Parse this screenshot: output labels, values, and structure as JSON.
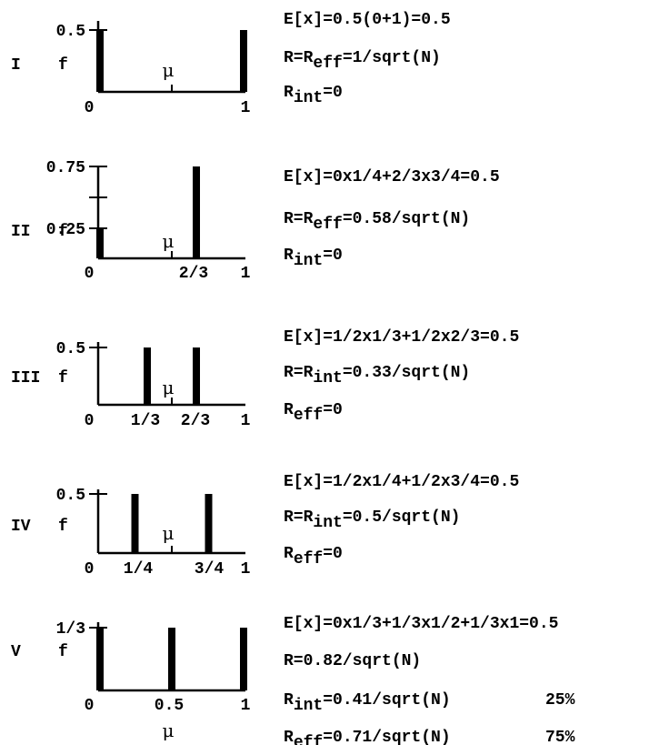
{
  "panels": [
    {
      "roman": "I",
      "f_label": "f",
      "mu_label": "μ",
      "x_ticks": [
        "0",
        "1"
      ],
      "y_ticks": [
        "0.5"
      ],
      "bars": [
        {
          "x": 0,
          "h": 0.5
        },
        {
          "x": 1,
          "h": 0.5
        }
      ],
      "mu": 0.5,
      "ymax": 0.5,
      "formulas": [
        [
          {
            "t": "E[x]=0.5(0+1)=0.5"
          }
        ],
        [
          {
            "t": "R=R"
          },
          {
            "t": "eff",
            "sub": true
          },
          {
            "t": "=1/sqrt(N)"
          }
        ],
        [
          {
            "t": "R"
          },
          {
            "t": "int",
            "sub": true
          },
          {
            "t": "=0"
          }
        ]
      ]
    },
    {
      "roman": "II",
      "f_label": "f",
      "mu_label": "μ",
      "x_ticks": [
        "0",
        "2/3",
        "1"
      ],
      "y_ticks": [
        "0.75",
        "0.25"
      ],
      "bars": [
        {
          "x": 0,
          "h": 0.25
        },
        {
          "x": 0.6667,
          "h": 0.75
        }
      ],
      "mu": 0.5,
      "ymax": 0.75,
      "formulas": [
        [
          {
            "t": "E[x]=0x1/4+2/3x3/4=0.5"
          }
        ],
        [
          {
            "t": "R=R"
          },
          {
            "t": "eff",
            "sub": true
          },
          {
            "t": "=0.58/sqrt(N)"
          }
        ],
        [
          {
            "t": "R"
          },
          {
            "t": "int",
            "sub": true
          },
          {
            "t": "=0"
          }
        ]
      ]
    },
    {
      "roman": "III",
      "f_label": "f",
      "mu_label": "μ",
      "x_ticks": [
        "0",
        "1/3",
        "2/3",
        "1"
      ],
      "y_ticks": [
        "0.5"
      ],
      "bars": [
        {
          "x": 0.3333,
          "h": 0.5
        },
        {
          "x": 0.6667,
          "h": 0.5
        }
      ],
      "mu": 0.5,
      "ymax": 0.5,
      "formulas": [
        [
          {
            "t": "E[x]=1/2x1/3+1/2x2/3=0.5"
          }
        ],
        [
          {
            "t": "R=R"
          },
          {
            "t": "int",
            "sub": true
          },
          {
            "t": "=0.33/sqrt(N)"
          }
        ],
        [
          {
            "t": "R"
          },
          {
            "t": "eff",
            "sub": true
          },
          {
            "t": "=0"
          }
        ]
      ]
    },
    {
      "roman": "IV",
      "f_label": "f",
      "mu_label": "μ",
      "x_ticks": [
        "0",
        "1/4",
        "3/4",
        "1"
      ],
      "y_ticks": [
        "0.5"
      ],
      "bars": [
        {
          "x": 0.25,
          "h": 0.5
        },
        {
          "x": 0.75,
          "h": 0.5
        }
      ],
      "mu": 0.5,
      "ymax": 0.5,
      "formulas": [
        [
          {
            "t": "E[x]=1/2x1/4+1/2x3/4=0.5"
          }
        ],
        [
          {
            "t": "R=R"
          },
          {
            "t": "int",
            "sub": true
          },
          {
            "t": "=0.5/sqrt(N)"
          }
        ],
        [
          {
            "t": "R"
          },
          {
            "t": "eff",
            "sub": true
          },
          {
            "t": "=0"
          }
        ]
      ]
    },
    {
      "roman": "V",
      "f_label": "f",
      "mu_label": "μ",
      "x_ticks": [
        "0",
        "0.5",
        "1"
      ],
      "y_ticks": [
        "1/3"
      ],
      "bars": [
        {
          "x": 0,
          "h": 0.3333
        },
        {
          "x": 0.5,
          "h": 0.3333
        },
        {
          "x": 1,
          "h": 0.3333
        }
      ],
      "mu": 0.5,
      "ymax": 0.3333,
      "formulas": [
        [
          {
            "t": "E[x]=0x1/3+1/3x1/2+1/3x1=0.5"
          }
        ],
        [
          {
            "t": "R=0.82/sqrt(N)"
          }
        ],
        [
          {
            "t": "R"
          },
          {
            "t": "int",
            "sub": true
          },
          {
            "t": "=0.41/sqrt(N)"
          },
          {
            "t": "25%",
            "pct": true
          }
        ],
        [
          {
            "t": "R"
          },
          {
            "t": "eff",
            "sub": true
          },
          {
            "t": "=0.71/sqrt(N)"
          },
          {
            "t": "75%",
            "pct": true
          }
        ]
      ]
    }
  ]
}
